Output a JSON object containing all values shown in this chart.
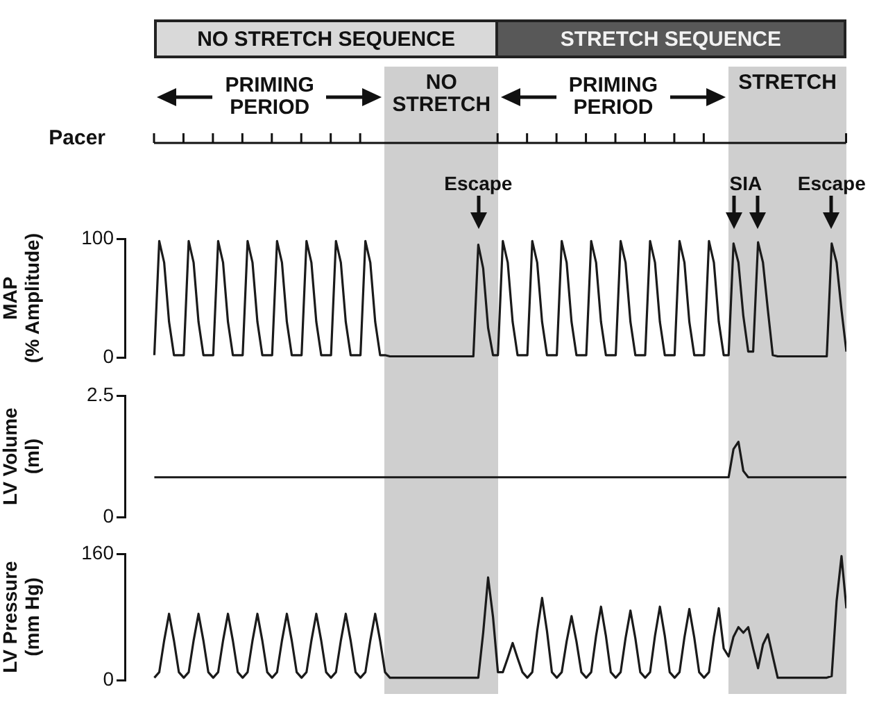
{
  "chart_data": [
    {
      "type": "other",
      "annotations": [
        "NO STRETCH SEQUENCE",
        "STRETCH SEQUENCE",
        "PRIMING PERIOD",
        "NO STRETCH",
        "PRIMING PERIOD",
        "STRETCH",
        "Pacer"
      ]
    },
    {
      "type": "line",
      "ylabel": "MAP (% Amplitude)",
      "ylim": [
        0,
        100
      ],
      "yticks": [
        0,
        100
      ],
      "categories": [
        null,
        null,
        null,
        null,
        null,
        null,
        null,
        null,
        null,
        null,
        null,
        null,
        null,
        null,
        null,
        null,
        null,
        null,
        null,
        null,
        null,
        null,
        null,
        null,
        null,
        null,
        null,
        null,
        null,
        null,
        null,
        null,
        null,
        null,
        null,
        null,
        null,
        null,
        null,
        null,
        null,
        null,
        null,
        null,
        null,
        null,
        null,
        null,
        null,
        null,
        null,
        null,
        null,
        null,
        null,
        null,
        null,
        null,
        null,
        null,
        null,
        null,
        null,
        null,
        null,
        null,
        null,
        null,
        null,
        null,
        null,
        null,
        null,
        null,
        null,
        null,
        null,
        null,
        null,
        null,
        null,
        null,
        null,
        null,
        null,
        null,
        null,
        null,
        null,
        null,
        null,
        null,
        null,
        null,
        null,
        null,
        null,
        null,
        null,
        null,
        null,
        null,
        null,
        null,
        null,
        null,
        null,
        null,
        null,
        null,
        null,
        null,
        null,
        null,
        null,
        null,
        null,
        null,
        null,
        null,
        null,
        null,
        null,
        null,
        null,
        null,
        null,
        null,
        null,
        null,
        null,
        null,
        null,
        null,
        null,
        null,
        null,
        null,
        null,
        null,
        null,
        null
      ],
      "color": "#1a1a1a",
      "values": [
        2,
        98,
        80,
        30,
        2,
        2,
        2,
        98,
        80,
        30,
        2,
        2,
        2,
        98,
        80,
        30,
        2,
        2,
        2,
        98,
        80,
        30,
        2,
        2,
        2,
        98,
        80,
        30,
        2,
        2,
        2,
        98,
        80,
        30,
        2,
        2,
        2,
        98,
        80,
        30,
        2,
        2,
        2,
        98,
        80,
        30,
        2,
        2,
        1,
        1,
        1,
        1,
        1,
        1,
        1,
        1,
        1,
        1,
        1,
        1,
        1,
        1,
        1,
        1,
        1,
        1,
        95,
        75,
        25,
        2,
        2,
        98,
        80,
        30,
        2,
        2,
        2,
        98,
        80,
        30,
        2,
        2,
        2,
        98,
        80,
        30,
        2,
        2,
        2,
        98,
        80,
        30,
        2,
        2,
        2,
        98,
        80,
        30,
        2,
        2,
        2,
        98,
        80,
        30,
        2,
        2,
        2,
        98,
        80,
        30,
        2,
        2,
        2,
        98,
        80,
        30,
        2,
        2,
        96,
        80,
        35,
        5,
        5,
        97,
        80,
        40,
        2,
        1,
        1,
        1,
        1,
        1,
        1,
        1,
        1,
        1,
        1,
        1,
        96,
        80,
        40,
        5
      ],
      "annotations": [
        "Escape",
        "SIA",
        "Escape"
      ]
    },
    {
      "type": "line",
      "ylabel": "LV Volume (ml)",
      "ylim": [
        0,
        2.5
      ],
      "yticks": [
        0,
        2.5
      ],
      "categories": [
        null,
        null,
        null,
        null,
        null,
        null,
        null,
        null,
        null,
        null,
        null,
        null,
        null,
        null,
        null,
        null,
        null,
        null,
        null,
        null,
        null,
        null,
        null,
        null,
        null,
        null,
        null,
        null,
        null,
        null,
        null,
        null,
        null,
        null,
        null,
        null,
        null,
        null,
        null,
        null,
        null,
        null,
        null,
        null,
        null,
        null,
        null,
        null,
        null,
        null,
        null,
        null,
        null,
        null,
        null,
        null,
        null,
        null,
        null,
        null,
        null,
        null,
        null,
        null,
        null,
        null,
        null,
        null,
        null,
        null,
        null,
        null,
        null,
        null,
        null,
        null,
        null,
        null,
        null,
        null,
        null,
        null,
        null,
        null,
        null,
        null,
        null,
        null,
        null,
        null,
        null,
        null,
        null,
        null,
        null,
        null,
        null,
        null,
        null,
        null,
        null,
        null,
        null,
        null,
        null,
        null,
        null,
        null,
        null,
        null,
        null,
        null,
        null,
        null,
        null,
        null,
        null,
        null,
        null,
        null,
        null,
        null,
        null,
        null,
        null,
        null,
        null,
        null,
        null,
        null,
        null,
        null,
        null,
        null,
        null,
        null,
        null,
        null,
        null,
        null,
        null,
        null
      ],
      "color": "#1a1a1a",
      "values": [
        0.82,
        0.82,
        0.82,
        0.82,
        0.82,
        0.82,
        0.82,
        0.82,
        0.82,
        0.82,
        0.82,
        0.82,
        0.82,
        0.82,
        0.82,
        0.82,
        0.82,
        0.82,
        0.82,
        0.82,
        0.82,
        0.82,
        0.82,
        0.82,
        0.82,
        0.82,
        0.82,
        0.82,
        0.82,
        0.82,
        0.82,
        0.82,
        0.82,
        0.82,
        0.82,
        0.82,
        0.82,
        0.82,
        0.82,
        0.82,
        0.82,
        0.82,
        0.82,
        0.82,
        0.82,
        0.82,
        0.82,
        0.82,
        0.82,
        0.82,
        0.82,
        0.82,
        0.82,
        0.82,
        0.82,
        0.82,
        0.82,
        0.82,
        0.82,
        0.82,
        0.82,
        0.82,
        0.82,
        0.82,
        0.82,
        0.82,
        0.82,
        0.82,
        0.82,
        0.82,
        0.82,
        0.82,
        0.82,
        0.82,
        0.82,
        0.82,
        0.82,
        0.82,
        0.82,
        0.82,
        0.82,
        0.82,
        0.82,
        0.82,
        0.82,
        0.82,
        0.82,
        0.82,
        0.82,
        0.82,
        0.82,
        0.82,
        0.82,
        0.82,
        0.82,
        0.82,
        0.82,
        0.82,
        0.82,
        0.82,
        0.82,
        0.82,
        0.82,
        0.82,
        0.82,
        0.82,
        0.82,
        0.82,
        0.82,
        0.82,
        0.82,
        0.82,
        0.82,
        0.82,
        0.82,
        0.82,
        0.82,
        0.82,
        1.4,
        1.55,
        0.95,
        0.82,
        0.82,
        0.82,
        0.82,
        0.82,
        0.82,
        0.82,
        0.82,
        0.82,
        0.82,
        0.82,
        0.82,
        0.82,
        0.82,
        0.82,
        0.82,
        0.82,
        0.82,
        0.82,
        0.82,
        0.82
      ]
    },
    {
      "type": "line",
      "ylabel": "LV Pressure (mm Hg)",
      "ylim": [
        0,
        160
      ],
      "yticks": [
        0,
        160
      ],
      "categories": [
        null,
        null,
        null,
        null,
        null,
        null,
        null,
        null,
        null,
        null,
        null,
        null,
        null,
        null,
        null,
        null,
        null,
        null,
        null,
        null,
        null,
        null,
        null,
        null,
        null,
        null,
        null,
        null,
        null,
        null,
        null,
        null,
        null,
        null,
        null,
        null,
        null,
        null,
        null,
        null,
        null,
        null,
        null,
        null,
        null,
        null,
        null,
        null,
        null,
        null,
        null,
        null,
        null,
        null,
        null,
        null,
        null,
        null,
        null,
        null,
        null,
        null,
        null,
        null,
        null,
        null,
        null,
        null,
        null,
        null,
        null,
        null,
        null,
        null,
        null,
        null,
        null,
        null,
        null,
        null,
        null,
        null,
        null,
        null,
        null,
        null,
        null,
        null,
        null,
        null,
        null,
        null,
        null,
        null,
        null,
        null,
        null,
        null,
        null,
        null,
        null,
        null,
        null,
        null,
        null,
        null,
        null,
        null,
        null,
        null,
        null,
        null,
        null,
        null,
        null,
        null,
        null,
        null,
        null,
        null,
        null,
        null,
        null,
        null,
        null,
        null,
        null,
        null,
        null,
        null,
        null,
        null,
        null,
        null,
        null,
        null,
        null,
        null,
        null,
        null,
        null,
        null
      ],
      "color": "#1a1a1a",
      "values": [
        3,
        10,
        50,
        84,
        50,
        10,
        3,
        10,
        50,
        84,
        50,
        10,
        3,
        10,
        50,
        84,
        50,
        10,
        3,
        10,
        50,
        84,
        50,
        10,
        3,
        10,
        50,
        84,
        50,
        10,
        3,
        10,
        50,
        84,
        50,
        10,
        3,
        10,
        50,
        84,
        50,
        10,
        3,
        10,
        50,
        84,
        50,
        10,
        3,
        3,
        3,
        3,
        3,
        3,
        3,
        3,
        3,
        3,
        3,
        3,
        3,
        3,
        3,
        3,
        3,
        3,
        3,
        60,
        130,
        80,
        10,
        10,
        28,
        47,
        28,
        10,
        3,
        10,
        62,
        104,
        62,
        10,
        3,
        10,
        49,
        81,
        49,
        10,
        3,
        10,
        56,
        93,
        56,
        10,
        3,
        10,
        53,
        88,
        53,
        10,
        3,
        10,
        56,
        93,
        56,
        10,
        3,
        10,
        54,
        90,
        54,
        10,
        3,
        10,
        55,
        91,
        40,
        30,
        55,
        67,
        60,
        67,
        40,
        15,
        45,
        58,
        30,
        3,
        3,
        3,
        3,
        3,
        3,
        3,
        3,
        3,
        3,
        3,
        5,
        100,
        157,
        91
      ]
    }
  ]
}
